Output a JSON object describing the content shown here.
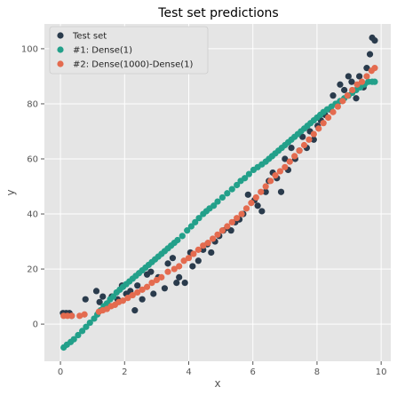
{
  "chart_data": {
    "type": "scatter",
    "title": "Test set predictions",
    "xlabel": "x",
    "ylabel": "y",
    "xlim": [
      -0.5,
      10.3
    ],
    "ylim": [
      -13.5,
      109
    ],
    "xticks": [
      0,
      2,
      4,
      6,
      8,
      10
    ],
    "yticks": [
      0,
      20,
      40,
      60,
      80,
      100
    ],
    "grid": true,
    "legend_position": "top-left",
    "background": "#E5E5E5",
    "series": [
      {
        "name": "Test set",
        "color": "#2A3B4C",
        "x": [
          0.08,
          0.18,
          0.28,
          0.35,
          0.78,
          1.12,
          1.22,
          1.32,
          1.48,
          1.6,
          1.78,
          1.92,
          2.05,
          2.18,
          2.32,
          2.4,
          2.55,
          2.7,
          2.82,
          2.9,
          3.05,
          3.25,
          3.35,
          3.5,
          3.62,
          3.7,
          3.88,
          4.05,
          4.12,
          4.3,
          4.45,
          4.58,
          4.7,
          4.82,
          4.95,
          5.08,
          5.2,
          5.32,
          5.45,
          5.58,
          5.7,
          5.85,
          6.05,
          6.15,
          6.28,
          6.4,
          6.5,
          6.62,
          6.75,
          6.88,
          7.0,
          7.1,
          7.2,
          7.32,
          7.45,
          7.55,
          7.68,
          7.78,
          7.9,
          8.02,
          8.12,
          8.25,
          8.38,
          8.5,
          8.62,
          8.72,
          8.85,
          8.98,
          9.08,
          9.22,
          9.32,
          9.45,
          9.55,
          9.65,
          9.72,
          9.8
        ],
        "y": [
          4,
          4,
          4,
          3,
          9,
          12,
          8,
          10,
          7,
          10,
          9,
          14,
          11,
          12,
          5,
          14,
          9,
          18,
          19,
          11,
          17,
          13,
          22,
          24,
          15,
          17,
          15,
          26,
          21,
          23,
          27,
          29,
          26,
          30,
          32,
          34,
          35,
          34,
          37,
          38,
          40,
          47,
          45,
          43,
          41,
          48,
          52,
          55,
          53,
          48,
          60,
          56,
          64,
          60,
          63,
          68,
          64,
          70,
          67,
          72,
          74,
          76,
          78,
          83,
          80,
          87,
          85,
          90,
          88,
          82,
          90,
          86,
          93,
          98,
          104,
          103
        ]
      },
      {
        "name": "#1: Dense(1)",
        "color": "#23A08A",
        "x": [
          0.1,
          0.2,
          0.32,
          0.42,
          0.55,
          0.68,
          0.8,
          0.92,
          1.05,
          1.15,
          1.25,
          1.35,
          1.45,
          1.55,
          1.65,
          1.75,
          1.85,
          1.95,
          2.05,
          2.15,
          2.25,
          2.35,
          2.45,
          2.55,
          2.65,
          2.75,
          2.85,
          2.95,
          3.05,
          3.15,
          3.25,
          3.35,
          3.45,
          3.55,
          3.65,
          3.8,
          3.95,
          4.08,
          4.2,
          4.32,
          4.45,
          4.55,
          4.65,
          4.78,
          4.9,
          5.05,
          5.2,
          5.35,
          5.5,
          5.62,
          5.75,
          5.88,
          6.02,
          6.15,
          6.28,
          6.4,
          6.5,
          6.6,
          6.7,
          6.8,
          6.9,
          7.0,
          7.1,
          7.2,
          7.3,
          7.4,
          7.5,
          7.6,
          7.7,
          7.8,
          7.9,
          8.0,
          8.1,
          8.2,
          8.32,
          8.45,
          8.58,
          8.72,
          8.85,
          8.98,
          9.1,
          9.22,
          9.35,
          9.48,
          9.6,
          9.72,
          9.8
        ],
        "y": [
          -8.5,
          -7.5,
          -6.5,
          -5.5,
          -4,
          -2.5,
          -1,
          0.5,
          2,
          3.5,
          5,
          6.5,
          7.5,
          9,
          10,
          11.5,
          12.5,
          13.5,
          14.5,
          15.5,
          16.5,
          17.5,
          18.5,
          19.5,
          20.5,
          21.5,
          22.5,
          23.5,
          24.5,
          25.5,
          26.5,
          27.5,
          28.5,
          29.5,
          30.5,
          32,
          34,
          35.5,
          37,
          38.5,
          40,
          41,
          42,
          43,
          44.5,
          46,
          47.5,
          49,
          50.5,
          52,
          53,
          54.5,
          56,
          57,
          58,
          59,
          60,
          61,
          62,
          63,
          64,
          65,
          66,
          67,
          68,
          69,
          70,
          71,
          72,
          73,
          74,
          75,
          76,
          77,
          78,
          79,
          80,
          81,
          82,
          83,
          84,
          85,
          86,
          87,
          88,
          88,
          88
        ]
      },
      {
        "name": "#2: Dense(1000)-Dense(1)",
        "color": "#E46B4F",
        "x": [
          0.1,
          0.22,
          0.35,
          0.6,
          0.75,
          1.2,
          1.32,
          1.45,
          1.58,
          1.7,
          1.82,
          1.95,
          2.1,
          2.25,
          2.4,
          2.55,
          2.7,
          2.85,
          3.0,
          3.15,
          3.35,
          3.55,
          3.7,
          3.85,
          4.0,
          4.15,
          4.3,
          4.45,
          4.6,
          4.75,
          4.9,
          5.05,
          5.2,
          5.35,
          5.5,
          5.65,
          5.8,
          5.95,
          6.1,
          6.25,
          6.4,
          6.55,
          6.7,
          6.85,
          7.0,
          7.15,
          7.3,
          7.45,
          7.6,
          7.75,
          7.9,
          8.05,
          8.2,
          8.35,
          8.5,
          8.65,
          8.8,
          8.95,
          9.1,
          9.25,
          9.4,
          9.55,
          9.7,
          9.8
        ],
        "y": [
          3,
          3,
          3,
          3,
          3.5,
          4.5,
          5,
          5.5,
          6.5,
          7,
          8,
          8.5,
          9.5,
          10.5,
          11.5,
          12.5,
          13.5,
          15,
          16,
          17,
          19,
          20,
          21,
          23,
          24,
          25.5,
          27,
          28.5,
          29.5,
          31,
          32.5,
          34,
          35.5,
          37,
          38.5,
          40,
          42,
          44,
          46,
          48,
          50,
          52,
          54,
          55.5,
          57,
          59,
          61,
          63,
          65,
          67,
          69,
          71,
          73,
          75,
          77,
          79,
          81,
          83,
          85,
          87,
          88,
          90,
          92,
          93
        ]
      }
    ]
  }
}
